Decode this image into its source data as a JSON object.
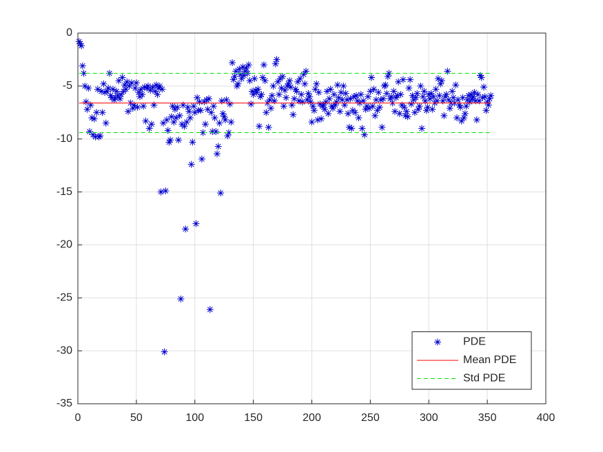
{
  "chart_data": {
    "type": "scatter",
    "xlim": [
      0,
      400
    ],
    "xticks": [
      0,
      50,
      100,
      150,
      200,
      250,
      300,
      350,
      400
    ],
    "ylim": [
      -35,
      0
    ],
    "yticks": [
      -35,
      -30,
      -25,
      -20,
      -15,
      -10,
      -5,
      0
    ],
    "grid": true,
    "legend": "southeast",
    "series": [
      {
        "name": "PDE",
        "color": "#0000cd",
        "marker": "asterisk",
        "x": [
          1,
          2,
          3,
          4,
          5,
          6,
          7,
          8,
          9,
          10,
          11,
          12,
          13,
          14,
          15,
          16,
          17,
          18,
          19,
          20,
          21,
          22,
          23,
          24,
          25,
          26,
          27,
          28,
          29,
          30,
          31,
          32,
          33,
          34,
          35,
          36,
          37,
          38,
          39,
          40,
          41,
          42,
          43,
          44,
          45,
          46,
          47,
          48,
          49,
          50,
          51,
          52,
          53,
          54,
          55,
          56,
          57,
          58,
          59,
          60,
          61,
          62,
          63,
          64,
          65,
          66,
          67,
          68,
          69,
          70,
          71,
          72,
          73,
          74,
          75,
          76,
          77,
          78,
          79,
          80,
          81,
          82,
          83,
          84,
          85,
          86,
          87,
          88,
          89,
          90,
          91,
          92,
          93,
          94,
          95,
          96,
          97,
          98,
          99,
          100,
          101,
          102,
          103,
          104,
          105,
          106,
          107,
          108,
          109,
          110,
          111,
          112,
          113,
          114,
          115,
          116,
          117,
          118,
          119,
          120,
          121,
          122,
          123,
          124,
          125,
          126,
          127,
          128,
          129,
          130,
          131,
          132,
          133,
          134,
          135,
          136,
          137,
          138,
          139,
          140,
          141,
          142,
          143,
          144,
          145,
          146,
          147,
          148,
          149,
          150,
          151,
          152,
          153,
          154,
          155,
          156,
          157,
          158,
          159,
          160,
          161,
          162,
          163,
          164,
          165,
          166,
          167,
          168,
          169,
          170,
          171,
          172,
          173,
          174,
          175,
          176,
          177,
          178,
          179,
          180,
          181,
          182,
          183,
          184,
          185,
          186,
          187,
          188,
          189,
          190,
          191,
          192,
          193,
          194,
          195,
          196,
          197,
          198,
          199,
          200,
          201,
          202,
          203,
          204,
          205,
          206,
          207,
          208,
          209,
          210,
          211,
          212,
          213,
          214,
          215,
          216,
          217,
          218,
          219,
          220,
          221,
          222,
          223,
          224,
          225,
          226,
          227,
          228,
          229,
          230,
          231,
          232,
          233,
          234,
          235,
          236,
          237,
          238,
          239,
          240,
          241,
          242,
          243,
          244,
          245,
          246,
          247,
          248,
          249,
          250,
          251,
          252,
          253,
          254,
          255,
          256,
          257,
          258,
          259,
          260,
          261,
          262,
          263,
          264,
          265,
          266,
          267,
          268,
          269,
          270,
          271,
          272,
          273,
          274,
          275,
          276,
          277,
          278,
          279,
          280,
          281,
          282,
          283,
          284,
          285,
          286,
          287,
          288,
          289,
          290,
          291,
          292,
          293,
          294,
          295,
          296,
          297,
          298,
          299,
          300,
          301,
          302,
          303,
          304,
          305,
          306,
          307,
          308,
          309,
          310,
          311,
          312,
          313,
          314,
          315,
          316,
          317,
          318,
          319,
          320,
          321,
          322,
          323,
          324,
          325,
          326,
          327,
          328,
          329,
          330,
          331,
          332,
          333,
          334,
          335,
          336,
          337,
          338,
          339,
          340,
          341,
          342,
          343,
          344,
          345,
          346,
          347,
          348,
          349,
          350,
          351,
          352,
          353
        ],
        "values": [
          -0.8,
          -1.0,
          -1.2,
          -3.1,
          -3.8,
          -5.0,
          -6.5,
          -7.2,
          -5.2,
          -9.3,
          -6.8,
          -8.0,
          -9.6,
          -8.1,
          -9.8,
          -7.5,
          -5.3,
          -9.8,
          -9.7,
          -5.5,
          -7.5,
          -4.8,
          -5.6,
          -8.5,
          -5.5,
          -5.2,
          -3.8,
          -5.9,
          -6.1,
          -5.3,
          -6.3,
          -6.1,
          -5.5,
          -5.9,
          -4.5,
          -6.2,
          -5.8,
          -4.2,
          -5.5,
          -4.9,
          -5.3,
          -4.6,
          -7.4,
          -5.0,
          -6.6,
          -4.7,
          -7.1,
          -6.8,
          -5.2,
          -4.7,
          -7.0,
          -5.6,
          -6.0,
          -5.3,
          -5.8,
          -6.9,
          -5.1,
          -8.3,
          -5.2,
          -5.0,
          -9.0,
          -5.4,
          -8.6,
          -5.1,
          -6.8,
          -5.5,
          -4.9,
          -5.8,
          -5.2,
          -5.0,
          -15.0,
          -5.3,
          -8.5,
          -30.1,
          -14.9,
          -8.2,
          -9.2,
          -10.3,
          -10.1,
          -7.9,
          -6.9,
          -8.4,
          -7.2,
          -8.0,
          -7.0,
          -10.1,
          -7.8,
          -25.1,
          -8.6,
          -6.8,
          -8.8,
          -18.5,
          -8.4,
          -7.0,
          -7.4,
          -8.0,
          -12.4,
          -10.3,
          -6.9,
          -7.5,
          -18.0,
          -6.1,
          -7.3,
          -6.5,
          -7.3,
          -11.9,
          -9.4,
          -6.5,
          -8.6,
          -6.3,
          -7.2,
          -6.2,
          -26.1,
          -7.5,
          -9.3,
          -6.9,
          -8.0,
          -9.3,
          -11.4,
          -10.7,
          -8.5,
          -15.1,
          -6.4,
          -7.6,
          -7.9,
          -8.2,
          -6.3,
          -9.7,
          -9.4,
          -6.7,
          -8.4,
          -2.8,
          -4.4,
          -4.1,
          -3.6,
          -5.0,
          -4.8,
          -3.4,
          -3.9,
          -4.3,
          -3.2,
          -4.0,
          -3.6,
          -3.3,
          -3.8,
          -3.0,
          -4.5,
          -6.7,
          -5.5,
          -5.8,
          -4.3,
          -5.4,
          -5.6,
          -5.3,
          -8.8,
          -6.0,
          -5.8,
          -4.2,
          -3.0,
          -4.5,
          -7.5,
          -6.6,
          -8.9,
          -6.3,
          -7.1,
          -5.9,
          -5.0,
          -6.4,
          -2.9,
          -2.5,
          -4.6,
          -5.8,
          -4.3,
          -5.2,
          -4.1,
          -6.9,
          -5.4,
          -6.1,
          -5.0,
          -4.8,
          -4.5,
          -5.1,
          -6.8,
          -7.7,
          -6.2,
          -5.3,
          -5.5,
          -4.6,
          -6.4,
          -4.3,
          -5.8,
          -6.5,
          -3.9,
          -4.8,
          -3.6,
          -6.3,
          -5.7,
          -6.0,
          -6.5,
          -8.4,
          -6.9,
          -7.3,
          -5.3,
          -4.8,
          -8.2,
          -5.6,
          -6.7,
          -8.1,
          -6.9,
          -6.8,
          -7.2,
          -6.5,
          -5.5,
          -7.6,
          -6.2,
          -5.3,
          -6.9,
          -7.1,
          -5.8,
          -6.8,
          -6.5,
          -4.9,
          -6.1,
          -7.4,
          -5.6,
          -6.3,
          -5.0,
          -6.8,
          -5.7,
          -6.3,
          -7.6,
          -8.9,
          -6.2,
          -9.0,
          -7.3,
          -6.0,
          -7.5,
          -5.9,
          -6.4,
          -8.0,
          -6.6,
          -5.8,
          -9.0,
          -6.4,
          -9.6,
          -7.2,
          -6.9,
          -6.0,
          -7.1,
          -5.5,
          -4.2,
          -6.9,
          -5.3,
          -7.8,
          -6.3,
          -7.3,
          -5.6,
          -7.0,
          -6.3,
          -8.9,
          -6.2,
          -5.0,
          -4.9,
          -5.7,
          -4.1,
          -3.8,
          -6.2,
          -6.0,
          -6.6,
          -5.5,
          -7.4,
          -6.1,
          -5.9,
          -4.6,
          -7.6,
          -5.8,
          -6.8,
          -4.4,
          -7.0,
          -7.8,
          -7.4,
          -7.9,
          -5.2,
          -4.4,
          -6.7,
          -5.9,
          -6.3,
          -7.5,
          -6.1,
          -5.7,
          -7.2,
          -6.9,
          -5.0,
          -9.0,
          -6.0,
          -5.5,
          -6.4,
          -7.3,
          -7.0,
          -5.8,
          -6.2,
          -5.7,
          -7.2,
          -6.0,
          -6.6,
          -5.3,
          -6.4,
          -4.3,
          -5.9,
          -4.8,
          -4.5,
          -6.4,
          -7.8,
          -6.0,
          -5.8,
          -3.6,
          -6.3,
          -7.1,
          -6.6,
          -5.5,
          -6.1,
          -6.6,
          -4.9,
          -8.0,
          -6.3,
          -6.8,
          -7.0,
          -8.3,
          -6.1,
          -8.0,
          -7.6,
          -6.9,
          -6.3,
          -5.9,
          -6.5,
          -5.8,
          -6.2,
          -6.0,
          -5.6,
          -6.4,
          -8.2,
          -5.8,
          -6.4,
          -4.0,
          -4.2,
          -6.1,
          -5.1,
          -6.0,
          -7.3,
          -6.5,
          -6.8,
          -6.2,
          -5.9
        ]
      },
      {
        "name": "Mean PDE",
        "color": "#ff0000",
        "values": [
          -6.6
        ]
      },
      {
        "name": "Std PDE",
        "color": "#00e000",
        "dashed": true,
        "values": [
          -3.8,
          -9.4
        ]
      }
    ]
  }
}
